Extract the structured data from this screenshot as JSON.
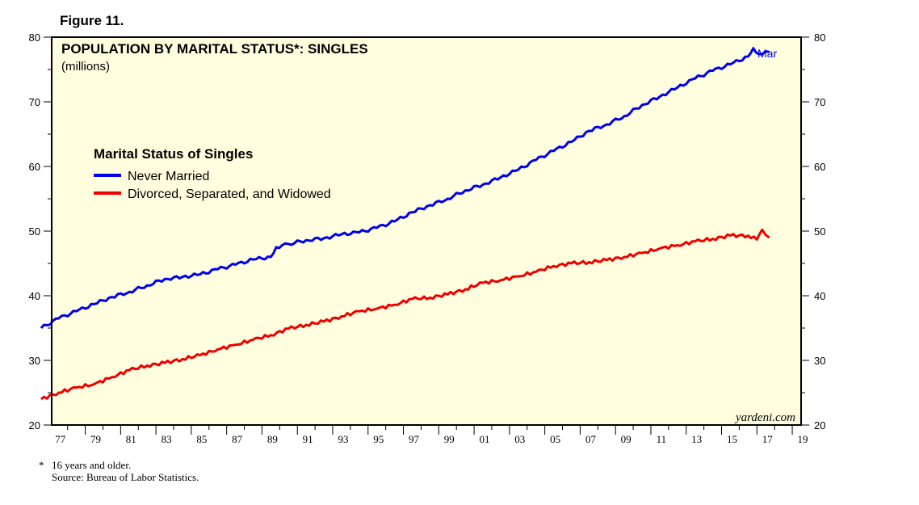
{
  "figure_label": "Figure 11.",
  "chart_data": {
    "type": "line",
    "title": "POPULATION BY MARITAL STATUS*: SINGLES",
    "subtitle": "(millions)",
    "legend_title": "Marital Status of Singles",
    "legend_position": "upper-left",
    "ylim": [
      20,
      80
    ],
    "y_ticks": [
      20,
      30,
      40,
      50,
      60,
      70,
      80
    ],
    "y_tick_labels": [
      "20",
      "30",
      "40",
      "50",
      "60",
      "70",
      "80"
    ],
    "xlim": [
      1977,
      2019
    ],
    "x_ticks": [
      1977,
      1979,
      1981,
      1983,
      1985,
      1987,
      1989,
      1991,
      1993,
      1995,
      1997,
      1999,
      2001,
      2003,
      2005,
      2007,
      2009,
      2011,
      2013,
      2015,
      2017,
      2019
    ],
    "x_tick_labels": [
      "77",
      "79",
      "81",
      "83",
      "85",
      "87",
      "89",
      "91",
      "93",
      "95",
      "97",
      "99",
      "01",
      "03",
      "05",
      "07",
      "09",
      "11",
      "13",
      "15",
      "17",
      "19"
    ],
    "grid": false,
    "end_annotation": "Mar",
    "watermark": "yardeni.com",
    "series": [
      {
        "name": "Never Married",
        "color": "#0000ee",
        "x": [
          1976.0,
          1977.0,
          1978.0,
          1979.0,
          1980.0,
          1981.0,
          1982.0,
          1983.0,
          1984.0,
          1985.0,
          1986.0,
          1987.0,
          1988.0,
          1989.0,
          1989.3,
          1990.0,
          1991.0,
          1992.0,
          1993.0,
          1994.0,
          1995.0,
          1996.0,
          1997.0,
          1998.0,
          1999.0,
          2000.0,
          2001.0,
          2002.0,
          2003.0,
          2004.0,
          2005.0,
          2006.0,
          2007.0,
          2008.0,
          2009.0,
          2010.0,
          2011.0,
          2012.0,
          2013.0,
          2014.0,
          2015.0,
          2016.0,
          2016.3,
          2016.6,
          2017.0,
          2017.2
        ],
        "values": [
          35.0,
          36.5,
          37.6,
          38.7,
          39.8,
          40.6,
          41.6,
          42.6,
          42.9,
          43.3,
          44.1,
          44.8,
          45.6,
          46.0,
          47.5,
          48.0,
          48.6,
          48.9,
          49.5,
          49.8,
          50.5,
          51.5,
          52.9,
          54.0,
          55.0,
          56.3,
          57.2,
          58.3,
          59.5,
          61.0,
          62.4,
          63.8,
          65.5,
          66.5,
          67.8,
          69.5,
          70.8,
          72.2,
          73.6,
          74.8,
          75.8,
          77.0,
          78.3,
          77.4,
          77.8,
          77.7
        ]
      },
      {
        "name": "Divorced, Separated, and Widowed",
        "color": "#ee0000",
        "x": [
          1976.0,
          1977.0,
          1978.0,
          1979.0,
          1980.0,
          1981.0,
          1982.0,
          1983.0,
          1984.0,
          1985.0,
          1986.0,
          1987.0,
          1988.0,
          1989.0,
          1990.0,
          1991.0,
          1992.0,
          1993.0,
          1994.0,
          1995.0,
          1996.0,
          1997.0,
          1998.0,
          1999.0,
          2000.0,
          2001.0,
          2002.0,
          2003.0,
          2004.0,
          2005.0,
          2006.0,
          2007.0,
          2008.0,
          2009.0,
          2010.0,
          2011.0,
          2012.0,
          2013.0,
          2014.0,
          2015.0,
          2016.0,
          2016.5,
          2016.8,
          2017.0,
          2017.2
        ],
        "values": [
          24.0,
          25.0,
          25.8,
          26.3,
          27.4,
          28.5,
          29.2,
          29.6,
          30.2,
          30.8,
          31.7,
          32.4,
          33.2,
          33.9,
          34.9,
          35.5,
          36.0,
          36.8,
          37.6,
          38.0,
          38.6,
          39.5,
          39.7,
          40.2,
          41.0,
          42.0,
          42.4,
          43.0,
          43.7,
          44.6,
          45.0,
          45.2,
          45.5,
          46.0,
          46.6,
          47.3,
          47.8,
          48.4,
          48.8,
          49.3,
          49.3,
          48.7,
          50.2,
          49.4,
          49.0
        ]
      }
    ]
  },
  "footnote": {
    "marker": "*",
    "note": "16 years and older.",
    "source": "Source: Bureau of Labor Statistics."
  }
}
